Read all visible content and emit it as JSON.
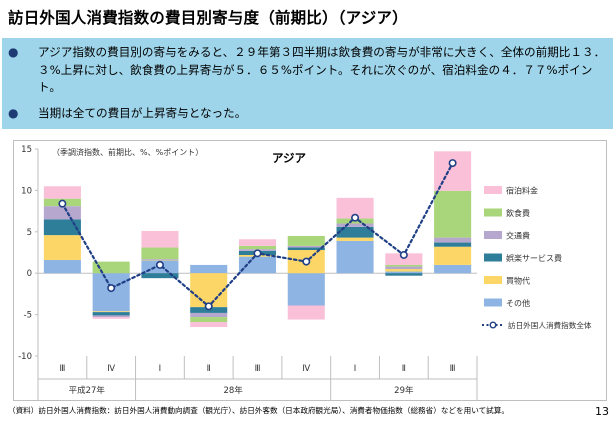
{
  "title": "訪日外国人消費指数の費目別寄与度（前期比）（アジア）",
  "bullets": [
    "アジア指数の費目別の寄与をみると、２９年第３四半期は飲食費の寄与が非常に大きく、全体の前期比１３．３%上昇に対し、飲食費の上昇寄与が５．６５%ポイント。それに次ぐのが、宿泊料金の４．７７%ポイント。",
    "当期は全ての費目が上昇寄与となった。"
  ],
  "footnote": "（資料）訪日外国人消費指数：訪日外国人消費動向調査（観光庁）、訪日外客数（日本政府観光局）、消費者物価指数（総務省）などを用いて試算。",
  "page_number": "13",
  "colors": {
    "summary_bg": "#9fd5ea",
    "accommodation": "#f9c0d8",
    "food": "#a9d67a",
    "transport": "#b6a7cf",
    "entertainment": "#2e7d99",
    "shopping": "#fcd667",
    "other": "#8eb4e3",
    "total_line": "#1f3f86"
  },
  "chart_data": {
    "type": "bar",
    "stacked": true,
    "title": "アジア",
    "note": "（季調済指数、前期比、%、%ポイント）",
    "categories": [
      "Ⅲ",
      "Ⅳ",
      "Ⅰ",
      "Ⅱ",
      "Ⅲ",
      "Ⅳ",
      "Ⅰ",
      "Ⅱ",
      "Ⅲ"
    ],
    "year_labels": [
      {
        "label": "平成27年",
        "from": 0,
        "to": 1
      },
      {
        "label": "28年",
        "from": 2,
        "to": 5
      },
      {
        "label": "29年",
        "from": 6,
        "to": 8
      }
    ],
    "ylim": [
      -10,
      15
    ],
    "yticks": [
      -10,
      -5,
      0,
      5,
      10,
      15
    ],
    "grid": false,
    "legend_position": "right",
    "series": [
      {
        "name": "その他",
        "color": "#8eb4e3",
        "values": [
          1.6,
          -4.6,
          1.6,
          1.0,
          2.0,
          -3.9,
          3.9,
          0.2,
          1.0
        ]
      },
      {
        "name": "買物代",
        "color": "#fcd667",
        "values": [
          3.0,
          -0.1,
          0.0,
          -4.1,
          0.2,
          2.8,
          0.4,
          0.3,
          2.2
        ]
      },
      {
        "name": "娯楽サービス費",
        "color": "#2e7d99",
        "values": [
          1.9,
          -0.4,
          -0.6,
          -0.7,
          0.5,
          0.3,
          1.3,
          -0.3,
          0.5
        ]
      },
      {
        "name": "交通費",
        "color": "#b6a7cf",
        "values": [
          1.6,
          -0.2,
          0.1,
          -0.5,
          0.2,
          0.2,
          0.4,
          0.3,
          0.6
        ]
      },
      {
        "name": "飲食費",
        "color": "#a9d67a",
        "values": [
          0.9,
          1.4,
          1.4,
          -0.6,
          0.4,
          1.2,
          0.6,
          0.2,
          5.65
        ]
      },
      {
        "name": "宿泊料金",
        "color": "#f9c0d8",
        "values": [
          1.5,
          -0.2,
          2.0,
          -0.6,
          0.8,
          -1.7,
          2.5,
          1.4,
          4.77
        ]
      }
    ],
    "line": {
      "name": "訪日外国人消費指数全体",
      "color": "#1f3f86",
      "values": [
        8.4,
        -1.8,
        1.0,
        -4.0,
        2.4,
        1.4,
        6.7,
        2.2,
        13.3
      ]
    }
  }
}
